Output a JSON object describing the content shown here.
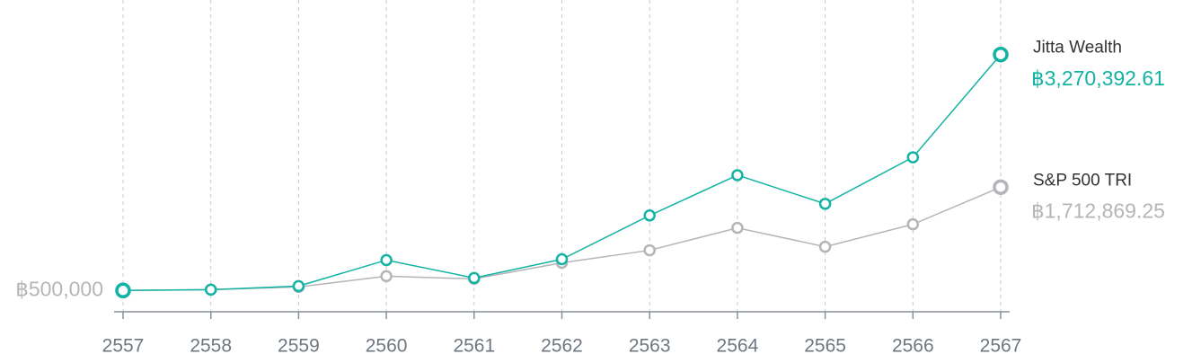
{
  "chart_data": {
    "type": "line",
    "categories": [
      "2557",
      "2558",
      "2559",
      "2560",
      "2561",
      "2562",
      "2563",
      "2564",
      "2565",
      "2566",
      "2567"
    ],
    "series": [
      {
        "name": "Jitta Wealth",
        "color": "#13b3a3",
        "values": [
          500000,
          510000,
          552000,
          857000,
          647000,
          867000,
          1381000,
          1854000,
          1518000,
          2064000,
          3270392.61
        ],
        "value_labels": [
          null,
          null,
          null,
          null,
          null,
          null,
          null,
          null,
          null,
          null,
          "฿3,270,392.61"
        ]
      },
      {
        "name": "S&P 500 TRI",
        "color": "#b3b5b8",
        "values": [
          500000,
          510000,
          542000,
          668000,
          636000,
          825000,
          972000,
          1235000,
          1014000,
          1277000,
          1712869.25
        ],
        "value_labels": [
          null,
          null,
          null,
          null,
          null,
          null,
          null,
          null,
          null,
          null,
          "฿1,712,869.25"
        ]
      }
    ],
    "ylim": [
      250000,
      3700000
    ],
    "yticks": [
      {
        "value": 500000,
        "label": "฿500,000"
      }
    ],
    "grid": true
  }
}
